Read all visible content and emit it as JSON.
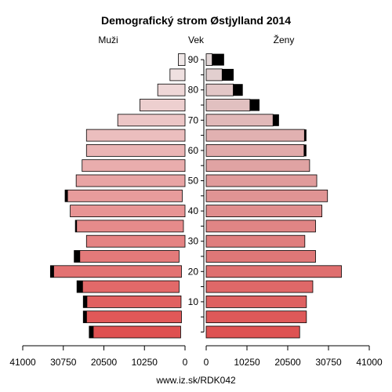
{
  "chart_data": {
    "type": "bar",
    "title": "Demografický strom Østjylland 2014",
    "left_label": "Muži",
    "center_label": "Vek",
    "right_label": "Ženy",
    "footer": "www.iz.sk/RDK042",
    "age_groups": [
      "0-4",
      "5-9",
      "10-14",
      "15-19",
      "20-24",
      "25-29",
      "30-34",
      "35-39",
      "40-44",
      "45-49",
      "50-54",
      "55-59",
      "60-64",
      "65-69",
      "70-74",
      "75-79",
      "80-84",
      "85-89",
      "90+"
    ],
    "age_tick_labels": [
      "10",
      "20",
      "30",
      "40",
      "50",
      "60",
      "70",
      "80",
      "90"
    ],
    "age_tick_positions": [
      2,
      4,
      6,
      8,
      10,
      12,
      14,
      16,
      18
    ],
    "x_tick_labels": [
      "41000",
      "30750",
      "20500",
      "10250",
      "0",
      "10250",
      "20500",
      "30750",
      "41000"
    ],
    "xlim": [
      0,
      41000
    ],
    "series": [
      {
        "name": "Muži",
        "values": [
          24200,
          25700,
          25700,
          27300,
          34000,
          28000,
          24900,
          27700,
          29000,
          30300,
          27500,
          26000,
          24900,
          24900,
          17000,
          11400,
          6900,
          3800,
          1700
        ],
        "foreign": [
          1100,
          900,
          1000,
          1500,
          900,
          1500,
          0,
          400,
          0,
          700,
          0,
          0,
          0,
          0,
          0,
          0,
          0,
          0,
          0
        ]
      },
      {
        "name": "Ženy",
        "values": [
          23500,
          25200,
          25200,
          26800,
          34000,
          27500,
          24800,
          27500,
          29100,
          30500,
          27800,
          26000,
          25200,
          25200,
          18300,
          13400,
          9200,
          6900,
          4500
        ],
        "foreign": [
          0,
          0,
          0,
          0,
          0,
          0,
          0,
          0,
          0,
          0,
          0,
          0,
          600,
          500,
          1500,
          2400,
          2400,
          2900,
          3000
        ]
      }
    ]
  }
}
